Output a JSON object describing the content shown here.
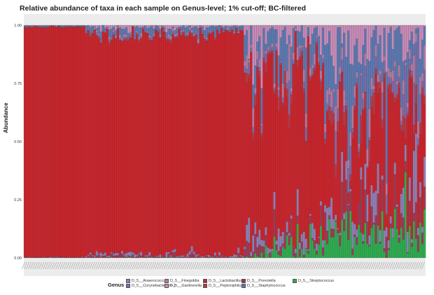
{
  "title": "Relative abundance of taxa in each sample on Genus-level; 1% cut-off;  BC-filtered",
  "chart_data": {
    "type": "bar",
    "stacked": true,
    "normalized": true,
    "ylabel": "Abundance",
    "ylim": [
      0,
      1
    ],
    "yticks": [
      "0.00",
      "0.25",
      "0.50",
      "0.75",
      "1.00"
    ],
    "legend_title": "Genus",
    "legend_position": "bottom",
    "n_samples": 190,
    "series": [
      {
        "name": "D_5__Anaerococcus",
        "color": "#8c7fb5"
      },
      {
        "name": "D_5__Corynebacterium 1",
        "color": "#7d6aa6"
      },
      {
        "name": "D_5__Finegoldia",
        "color": "#b07aa0"
      },
      {
        "name": "D_5__Gardnerella",
        "color": "#c88bb6"
      },
      {
        "name": "D_5__Lactobacillus",
        "color": "#c8242b"
      },
      {
        "name": "D_5__Peptoniphilus",
        "color": "#b33a49"
      },
      {
        "name": "D_5__Prevotella",
        "color": "#9a3b55"
      },
      {
        "name": "D_5__Staphylococcus",
        "color": "#5b78b0"
      },
      {
        "name": "D_5__Streptococcus",
        "color": "#2eab4f"
      }
    ],
    "samples_summary": [
      {
        "range": "first ~30 samples",
        "Lactobacillus": 0.99
      },
      {
        "range": "samples ~30-100",
        "Lactobacillus": 0.95
      },
      {
        "range": "samples ~100-150",
        "Lactobacillus": 0.75
      },
      {
        "range": "samples ~150-190",
        "Lactobacillus": 0.35
      }
    ]
  }
}
